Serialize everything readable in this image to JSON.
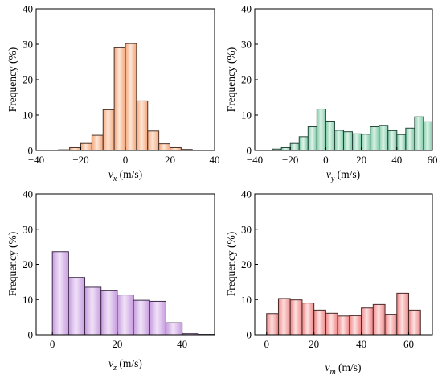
{
  "chart_data": [
    {
      "type": "bar",
      "ylabel": "Frequency (%)",
      "xlabel": {
        "var": "v",
        "sub": "x",
        "unit": " (m/s)"
      },
      "xlim": [
        -40,
        40
      ],
      "ylim": [
        0,
        40
      ],
      "xticks": [
        -40,
        -20,
        0,
        20,
        40
      ],
      "yticks": [
        0,
        10,
        20,
        30,
        40
      ],
      "bin_width": 5,
      "bins_start": [
        -40,
        -35,
        -30,
        -25,
        -20,
        -15,
        -10,
        -5,
        0,
        5,
        10,
        15,
        20,
        25,
        30,
        35
      ],
      "values": [
        0,
        0.1,
        0.2,
        0.8,
        2.0,
        4.3,
        11.5,
        29.0,
        30.2,
        14.0,
        5.5,
        1.9,
        0.8,
        0.3,
        0.1,
        0
      ],
      "colors": {
        "fill_light": "#fde7d8",
        "fill_dark": "#f4a67a",
        "edge": "#4a3328"
      }
    },
    {
      "type": "bar",
      "ylabel": "",
      "xlabel": {
        "var": "v",
        "sub": "y",
        "unit": " (m/s)"
      },
      "xlim": [
        -40,
        60
      ],
      "ylim": [
        0,
        40
      ],
      "xticks": [
        -40,
        -20,
        0,
        20,
        40,
        60
      ],
      "yticks": [
        0,
        10,
        20,
        30,
        40
      ],
      "bin_width": 5,
      "bins_start": [
        -40,
        -35,
        -30,
        -25,
        -20,
        -15,
        -10,
        -5,
        0,
        5,
        10,
        15,
        20,
        25,
        30,
        35,
        40,
        45,
        50,
        55
      ],
      "values": [
        0,
        0.1,
        0.4,
        0.8,
        2.0,
        3.9,
        6.7,
        11.7,
        8.3,
        5.7,
        5.3,
        4.7,
        4.6,
        6.7,
        7.1,
        5.6,
        4.5,
        6.3,
        9.5,
        8.1
      ],
      "colors": {
        "fill_light": "#dff3ea",
        "fill_dark": "#7ccaa5",
        "edge": "#24473a"
      }
    },
    {
      "type": "bar",
      "ylabel": "Frequency (%)",
      "xlabel": {
        "var": "v",
        "sub": "z",
        "unit": " (m/s)"
      },
      "xlim": [
        -5,
        50
      ],
      "ylim": [
        0,
        40
      ],
      "xticks": [
        0,
        20,
        40
      ],
      "yticks": [
        0,
        10,
        20,
        30,
        40
      ],
      "bin_width": 5,
      "bins_start": [
        0,
        5,
        10,
        15,
        20,
        25,
        30,
        35,
        40,
        45
      ],
      "values": [
        23.6,
        16.3,
        13.5,
        12.5,
        11.3,
        9.8,
        9.5,
        3.4,
        0.3,
        0.1
      ],
      "colors": {
        "fill_light": "#f1e3f8",
        "fill_dark": "#c79bdf",
        "edge": "#3e2d4a"
      }
    },
    {
      "type": "bar",
      "ylabel": "Frequency (%)",
      "xlabel": {
        "var": "v",
        "sub": "m",
        "unit": " (m/s)"
      },
      "xlim": [
        -5,
        70
      ],
      "ylim": [
        0,
        40
      ],
      "xticks": [
        0,
        20,
        40,
        60
      ],
      "yticks": [
        0,
        10,
        20,
        30,
        40
      ],
      "bin_width": 5,
      "bins_start": [
        0,
        5,
        10,
        15,
        20,
        25,
        30,
        35,
        40,
        45,
        50,
        55,
        60
      ],
      "values": [
        6.0,
        10.3,
        9.9,
        9.0,
        7.0,
        6.1,
        5.3,
        5.4,
        7.6,
        8.6,
        5.8,
        11.8,
        7.0
      ],
      "colors": {
        "fill_light": "#fde1e1",
        "fill_dark": "#ee8585",
        "edge": "#4a2828"
      }
    }
  ]
}
